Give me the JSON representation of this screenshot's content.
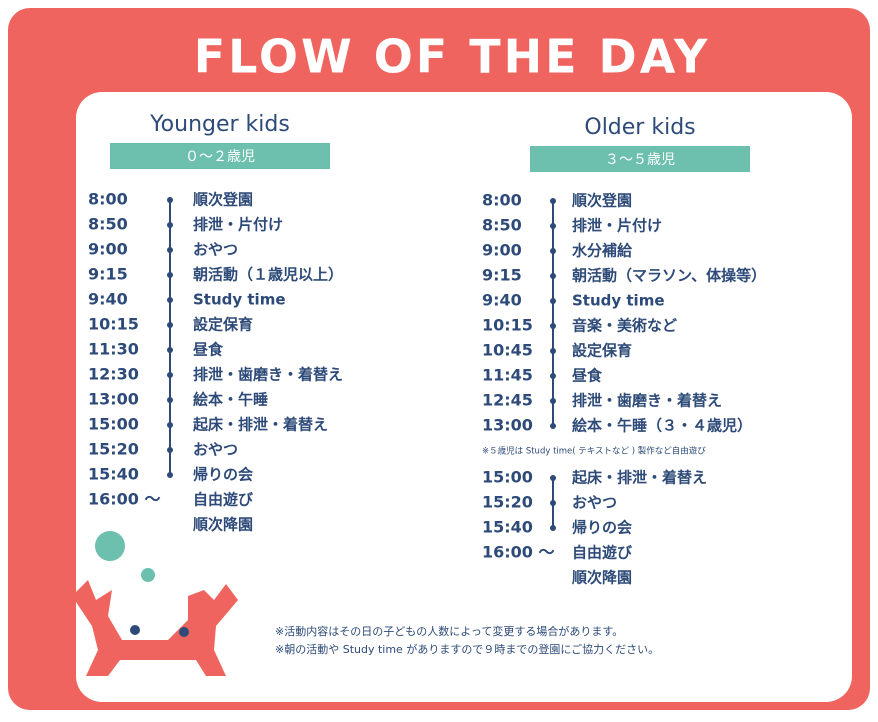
{
  "title": "FLOW OF THE DAY",
  "columns": [
    {
      "heading": "Younger kids",
      "age": "０～２歳児",
      "schedule": [
        {
          "time": "8:00",
          "activity": "順次登園"
        },
        {
          "time": "8:50",
          "activity": "排泄・片付け"
        },
        {
          "time": "9:00",
          "activity": "おやつ"
        },
        {
          "time": "9:15",
          "activity": "朝活動（１歳児以上）"
        },
        {
          "time": "9:40",
          "activity": "Study time"
        },
        {
          "time": "10:15",
          "activity": "設定保育"
        },
        {
          "time": "11:30",
          "activity": "昼食"
        },
        {
          "time": "12:30",
          "activity": "排泄・歯磨き・着替え"
        },
        {
          "time": "13:00",
          "activity": "絵本・午睡"
        },
        {
          "time": "15:00",
          "activity": "起床・排泄・着替え"
        },
        {
          "time": "15:20",
          "activity": "おやつ"
        },
        {
          "time": "15:40",
          "activity": "帰りの会"
        }
      ],
      "end": {
        "time": "16:00 ～",
        "activity": "自由遊び",
        "sub": "順次降園"
      }
    },
    {
      "heading": "Older kids",
      "age": "３～５歳児",
      "schedule": [
        {
          "time": "8:00",
          "activity": "順次登園"
        },
        {
          "time": "8:50",
          "activity": "排泄・片付け"
        },
        {
          "time": "9:00",
          "activity": "水分補給"
        },
        {
          "time": "9:15",
          "activity": "朝活動（マラソン、体操等）"
        },
        {
          "time": "9:40",
          "activity": "Study time"
        },
        {
          "time": "10:15",
          "activity": "音楽・美術など"
        },
        {
          "time": "10:45",
          "activity": "設定保育"
        },
        {
          "time": "11:45",
          "activity": "昼食"
        },
        {
          "time": "12:45",
          "activity": "排泄・歯磨き・着替え"
        },
        {
          "time": "13:00",
          "activity": "絵本・午睡（３・４歳児）"
        }
      ],
      "note": "※５歳児は Study time( テキストなど ) 製作など自由遊び",
      "schedule_2": [
        {
          "time": "15:00",
          "activity": "起床・排泄・着替え"
        },
        {
          "time": "15:20",
          "activity": "おやつ"
        },
        {
          "time": "15:40",
          "activity": "帰りの会"
        }
      ],
      "end": {
        "time": "16:00 ～",
        "activity": "自由遊び",
        "sub": "順次降園"
      }
    }
  ],
  "notes": [
    "※活動内容はその日の子どもの人数によって変更する場合があります。",
    "※朝の活動や Study time がありますので９時までの登園にご協力ください。"
  ]
}
